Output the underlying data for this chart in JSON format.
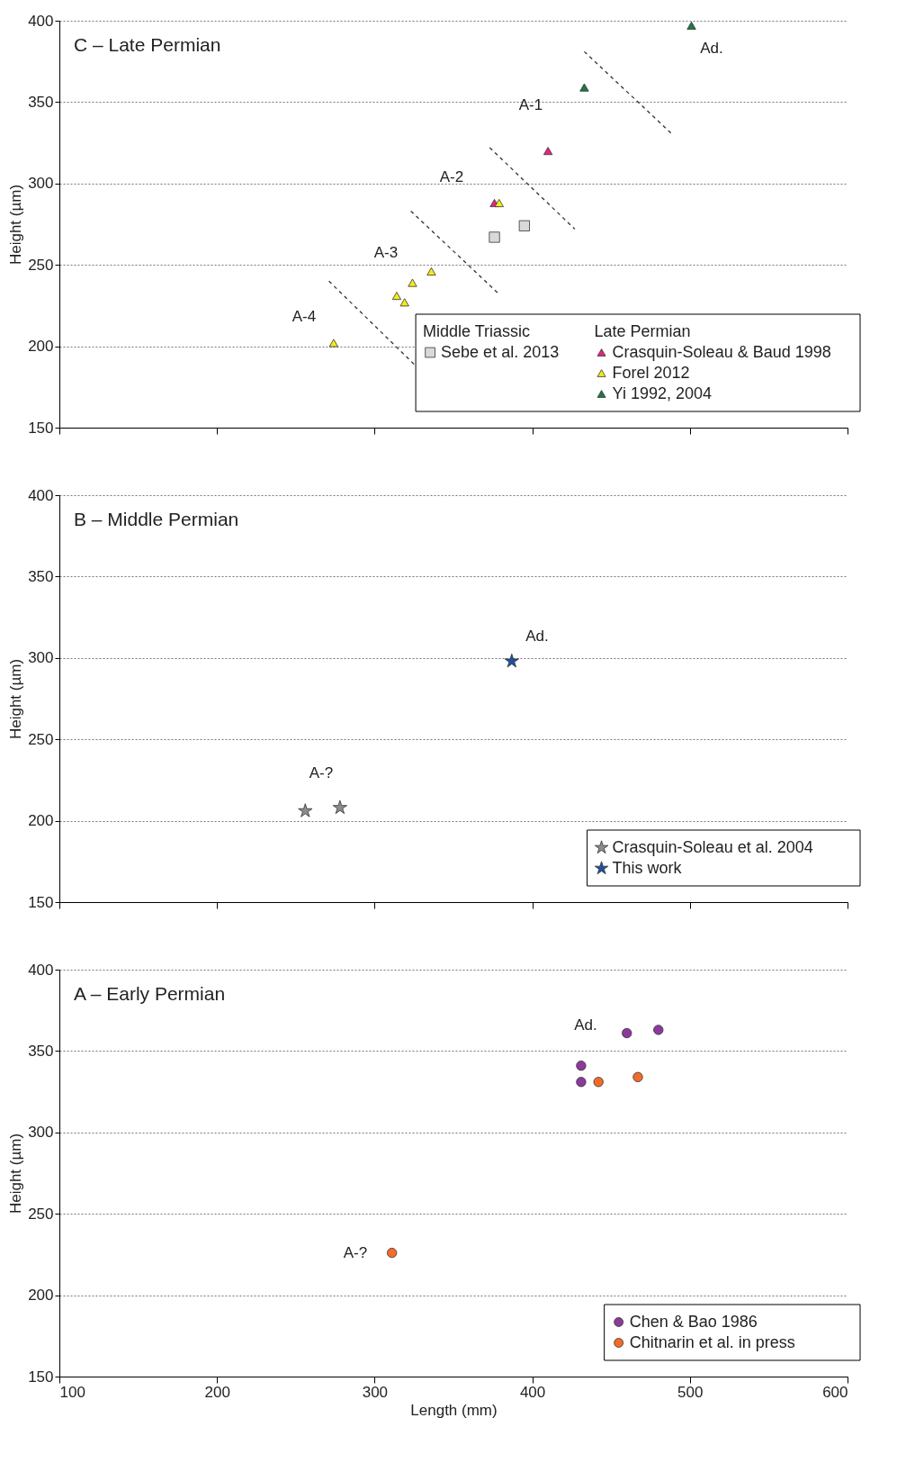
{
  "chart_data": [
    {
      "type": "scatter",
      "title": "C – Late Permian",
      "ylabel": "Height (µm)",
      "xlim": [
        100,
        600
      ],
      "ylim": [
        150,
        400
      ],
      "xticks": [
        100,
        200,
        300,
        400,
        500,
        600
      ],
      "yticks": [
        150,
        200,
        250,
        300,
        350,
        400
      ],
      "grid": "y",
      "tick_labels": "y",
      "legend": "bottom right",
      "annotations": [
        "Middle Triassic",
        "Late Permian",
        "A-4",
        "A-3",
        "A-2",
        "A-1",
        "Ad."
      ],
      "series": [
        {
          "name": "Sebe et al. 2013",
          "color": "#d9d9d9",
          "marker": "square",
          "x": [
            376,
            395
          ],
          "values": [
            267,
            274
          ]
        },
        {
          "name": "Crasquin-Soleau & Baud 1998",
          "color": "#e8237e",
          "marker": "triangle",
          "x": [
            410,
            376
          ],
          "values": [
            320,
            288
          ]
        },
        {
          "name": "Forel 2012",
          "color": "#f4ea1a",
          "marker": "triangle",
          "x": [
            379,
            274,
            314,
            319,
            324,
            336
          ],
          "values": [
            288,
            202,
            231,
            227,
            239,
            246
          ]
        },
        {
          "name": "Yi 1992, 2004",
          "color": "#1e7a43",
          "marker": "triangle",
          "x": [
            501,
            433
          ],
          "values": [
            397,
            359
          ]
        },
        {
          "type": "line",
          "color": "#333333",
          "line_style": "dashed",
          "x": [
            271,
            325
          ],
          "values": [
            240,
            189
          ]
        },
        {
          "type": "line",
          "color": "#333333",
          "line_style": "dashed",
          "x": [
            323,
            379
          ],
          "values": [
            283,
            232
          ]
        },
        {
          "type": "line",
          "color": "#333333",
          "line_style": "dashed",
          "x": [
            373,
            427
          ],
          "values": [
            322,
            272
          ]
        },
        {
          "type": "line",
          "color": "#333333",
          "line_style": "dashed",
          "x": [
            433,
            488
          ],
          "values": [
            381,
            331
          ]
        }
      ]
    },
    {
      "type": "scatter",
      "title": "B – Middle Permian",
      "ylabel": "Height (µm)",
      "xlim": [
        100,
        600
      ],
      "ylim": [
        150,
        400
      ],
      "xticks": [
        100,
        200,
        300,
        400,
        500,
        600
      ],
      "yticks": [
        150,
        200,
        250,
        300,
        350,
        400
      ],
      "grid": "y",
      "tick_labels": "y",
      "legend": "bottom right",
      "annotations": [
        "A-?",
        "Ad."
      ],
      "series": [
        {
          "name": "Crasquin-Soleau et al. 2004",
          "color": "#8c8c8c",
          "marker": "star",
          "x": [
            256,
            278
          ],
          "values": [
            206,
            208
          ]
        },
        {
          "name": "This work",
          "color": "#1f4fa0",
          "marker": "star",
          "x": [
            387
          ],
          "values": [
            298
          ]
        }
      ]
    },
    {
      "type": "scatter",
      "title": "A – Early Permian",
      "xlabel": "Length (mm)",
      "ylabel": "Height (µm)",
      "xlim": [
        100,
        600
      ],
      "ylim": [
        150,
        400
      ],
      "xticks": [
        100,
        200,
        300,
        400,
        500,
        600
      ],
      "yticks": [
        150,
        200,
        250,
        300,
        350,
        400
      ],
      "grid": "y",
      "legend": "bottom right",
      "annotations": [
        "Ad.",
        "A-?"
      ],
      "series": [
        {
          "name": "Chen & Bao 1986",
          "color": "#8b3a9c",
          "marker": "circle",
          "x": [
            431,
            431,
            460,
            480
          ],
          "values": [
            341,
            331,
            361,
            363
          ]
        },
        {
          "name": "Chitnarin et al. in press",
          "color": "#f26b2a",
          "marker": "circle",
          "x": [
            442,
            467,
            311
          ],
          "values": [
            331,
            334,
            226
          ]
        }
      ]
    }
  ]
}
